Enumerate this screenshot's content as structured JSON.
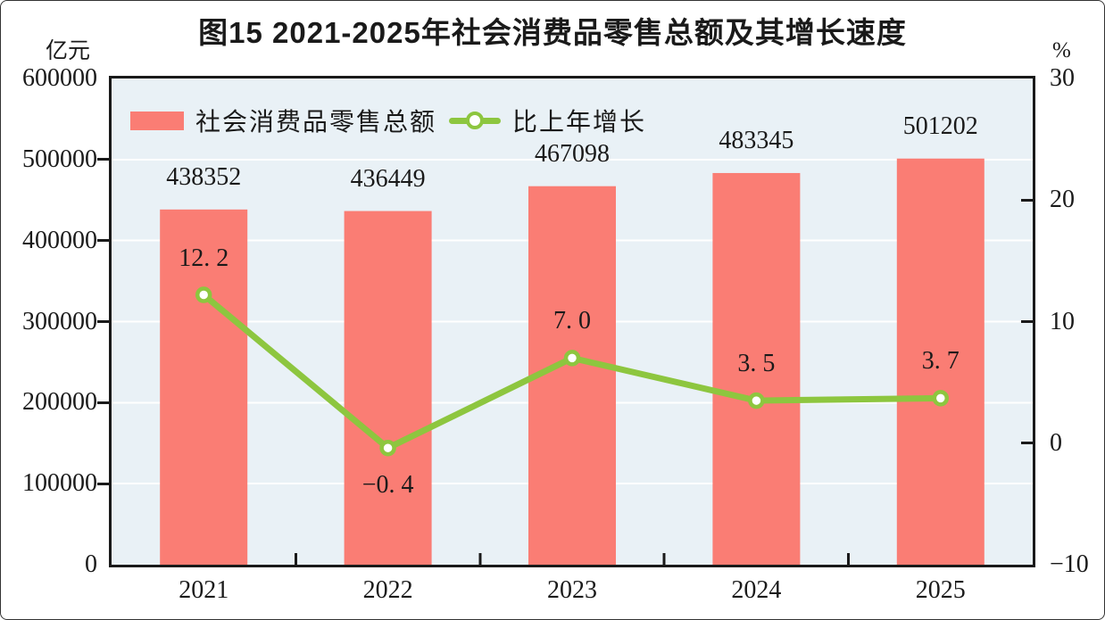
{
  "title": "图15  2021-2025年社会消费品零售总额及其增长速度",
  "colors": {
    "bar": "#FA7D74",
    "line": "#8DC63F",
    "marker_fill": "#FFFFFF",
    "plot_bg": "#E9F1F6",
    "grid": "#FFFFFF",
    "axis": "#1A1A1A",
    "text": "#1A1A1A"
  },
  "legend": {
    "items": [
      {
        "label": "社会消费品零售总额",
        "marker": "bar-swatch"
      },
      {
        "label": "比上年增长",
        "marker": "line-with-dot"
      }
    ]
  },
  "chart_data": {
    "type": "bar+line",
    "categories": [
      "2021",
      "2022",
      "2023",
      "2024",
      "2025"
    ],
    "series": [
      {
        "name": "社会消费品零售总额",
        "type": "bar",
        "axis": "left",
        "values": [
          438352,
          436449,
          467098,
          483345,
          501202
        ],
        "labels": [
          "438352",
          "436449",
          "467098",
          "483345",
          "501202"
        ]
      },
      {
        "name": "比上年增长",
        "type": "line",
        "axis": "right",
        "values": [
          12.2,
          -0.4,
          7.0,
          3.5,
          3.7
        ],
        "labels": [
          "12. 2",
          "−0. 4",
          "7. 0",
          "3. 5",
          "3. 7"
        ],
        "label_below": [
          false,
          true,
          false,
          false,
          false
        ]
      }
    ],
    "left_axis": {
      "unit": "亿元",
      "min": 0,
      "max": 600000,
      "step": 100000,
      "tick_labels": [
        "600000",
        "500000",
        "400000",
        "300000",
        "200000",
        "100000",
        "0"
      ]
    },
    "right_axis": {
      "unit": "%",
      "min": -10,
      "max": 30,
      "step": 10,
      "tick_labels": [
        "30",
        "20",
        "10",
        "0",
        "−10"
      ]
    },
    "grid": "horizontal-white-lines-at-left-axis-steps",
    "legend_position": "top-left-inside-plot"
  }
}
